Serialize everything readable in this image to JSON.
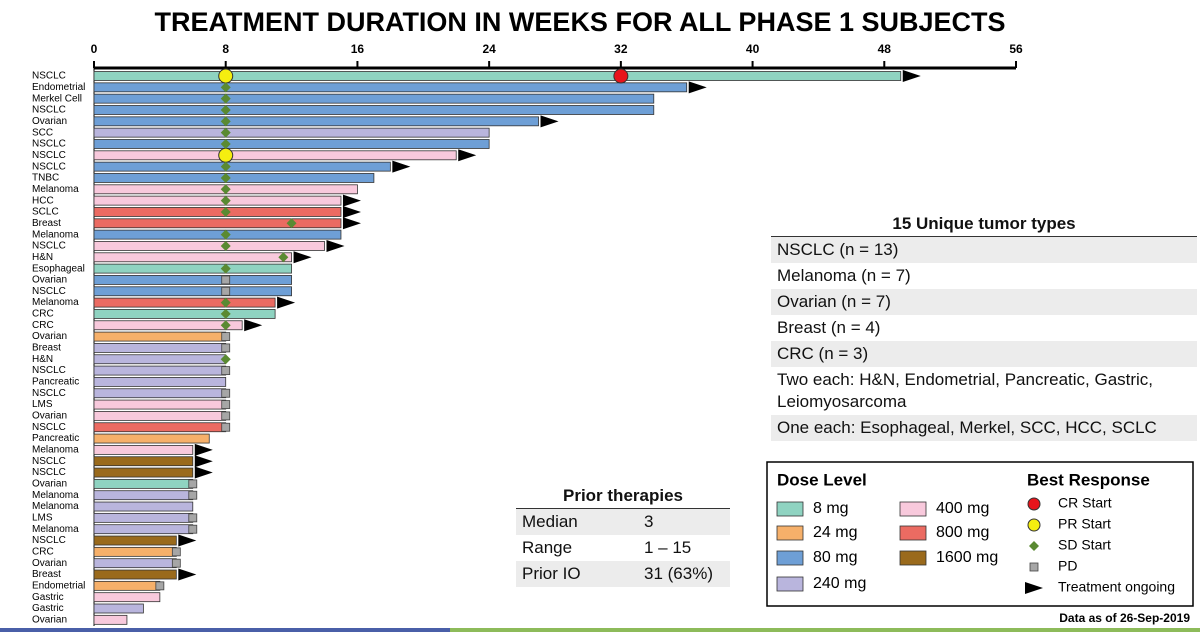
{
  "chart_data": {
    "type": "swimmer",
    "orientation": "horizontal",
    "title": "TREATMENT DURATION IN WEEKS FOR ALL PHASE 1 SUBJECTS",
    "xlim": [
      0,
      56
    ],
    "xticks": [
      0,
      8,
      16,
      24,
      32,
      40,
      48,
      56
    ],
    "categories": [
      "NSCLC",
      "Endometrial",
      "Merkel Cell",
      "NSCLC",
      "Ovarian",
      "SCC",
      "NSCLC",
      "NSCLC",
      "NSCLC",
      "TNBC",
      "Melanoma",
      "HCC",
      "SCLC",
      "Breast",
      "Melanoma",
      "NSCLC",
      "H&N",
      "Esophageal",
      "Ovarian",
      "NSCLC",
      "Melanoma",
      "CRC",
      "CRC",
      "Ovarian",
      "Breast",
      "H&N",
      "NSCLC",
      "Pancreatic",
      "NSCLC",
      "LMS",
      "Ovarian",
      "NSCLC",
      "Pancreatic",
      "Melanoma",
      "NSCLC",
      "NSCLC",
      "Ovarian",
      "Melanoma",
      "Melanoma",
      "LMS",
      "Melanoma",
      "NSCLC",
      "CRC",
      "Ovarian",
      "Breast",
      "Endometrial",
      "Gastric",
      "Gastric",
      "Ovarian"
    ],
    "values": [
      49,
      36,
      34,
      34,
      27,
      24,
      24,
      22,
      18,
      17,
      16,
      15,
      15,
      15,
      15,
      14,
      12,
      12,
      12,
      12,
      11,
      11,
      9,
      8,
      8,
      8,
      8,
      8,
      8,
      8,
      8,
      8,
      7,
      6,
      6,
      6,
      6,
      6,
      6,
      6,
      6,
      5,
      5,
      5,
      5,
      4,
      4,
      3,
      2
    ],
    "dose": [
      "8 mg",
      "80 mg",
      "80 mg",
      "80 mg",
      "80 mg",
      "240 mg",
      "80 mg",
      "400 mg",
      "80 mg",
      "80 mg",
      "400 mg",
      "400 mg",
      "800 mg",
      "800 mg",
      "80 mg",
      "400 mg",
      "400 mg",
      "8 mg",
      "80 mg",
      "80 mg",
      "800 mg",
      "8 mg",
      "400 mg",
      "24 mg",
      "240 mg",
      "240 mg",
      "240 mg",
      "240 mg",
      "240 mg",
      "400 mg",
      "400 mg",
      "800 mg",
      "24 mg",
      "400 mg",
      "1600 mg",
      "1600 mg",
      "8 mg",
      "240 mg",
      "240 mg",
      "240 mg",
      "240 mg",
      "1600 mg",
      "24 mg",
      "240 mg",
      "1600 mg",
      "24 mg",
      "400 mg",
      "240 mg",
      "400 mg"
    ],
    "dose_legend_title": "Dose Level",
    "doses": [
      {
        "name": "8 mg",
        "color": "#8fd3c1"
      },
      {
        "name": "24 mg",
        "color": "#f6b06a"
      },
      {
        "name": "80 mg",
        "color": "#6e9fd6"
      },
      {
        "name": "240 mg",
        "color": "#b9b5dd"
      },
      {
        "name": "400 mg",
        "color": "#f8c9dc"
      },
      {
        "name": "800 mg",
        "color": "#eb6b62"
      },
      {
        "name": "1600 mg",
        "color": "#9a6a1c"
      }
    ],
    "response_legend_title": "Best Response",
    "responses": [
      {
        "name": "CR Start",
        "color": "#e8141b",
        "marker": "circle",
        "values": [
          32,
          null,
          null,
          null,
          null,
          null,
          null,
          null,
          null,
          null,
          null,
          null,
          null,
          null,
          null,
          null,
          null,
          null,
          null,
          null,
          null,
          null,
          null,
          null,
          null,
          null,
          null,
          null,
          null,
          null,
          null,
          null,
          null,
          null,
          null,
          null,
          null,
          null,
          null,
          null,
          null,
          null,
          null,
          null,
          null,
          null,
          null,
          null,
          null
        ]
      },
      {
        "name": "PR Start",
        "color": "#f5ee10",
        "marker": "circle",
        "values": [
          8,
          null,
          null,
          null,
          null,
          null,
          null,
          8,
          null,
          null,
          null,
          null,
          null,
          null,
          null,
          null,
          null,
          null,
          null,
          null,
          null,
          null,
          null,
          null,
          null,
          null,
          null,
          null,
          null,
          null,
          null,
          null,
          null,
          null,
          null,
          null,
          null,
          null,
          null,
          null,
          null,
          null,
          null,
          null,
          null,
          null,
          null,
          null,
          null
        ]
      },
      {
        "name": "SD Start",
        "color": "#5a8a32",
        "marker": "diamond",
        "values": [
          null,
          8,
          8,
          8,
          8,
          8,
          8,
          null,
          8,
          8,
          8,
          8,
          8,
          12,
          8,
          8,
          11.5,
          8,
          null,
          null,
          8,
          8,
          8,
          null,
          null,
          8,
          null,
          null,
          null,
          null,
          null,
          null,
          null,
          null,
          null,
          null,
          null,
          null,
          null,
          null,
          null,
          null,
          null,
          null,
          null,
          null,
          null,
          null,
          null
        ]
      },
      {
        "name": "PD",
        "color": "#a6a6a6",
        "marker": "square",
        "values": [
          null,
          null,
          null,
          null,
          null,
          null,
          null,
          null,
          null,
          null,
          null,
          null,
          null,
          null,
          null,
          null,
          null,
          null,
          8,
          8,
          null,
          null,
          null,
          8,
          8,
          null,
          8,
          null,
          8,
          8,
          8,
          8,
          null,
          null,
          null,
          null,
          6,
          6,
          null,
          6,
          6,
          null,
          5,
          5,
          null,
          4,
          null,
          null,
          null
        ]
      },
      {
        "name": "Treatment ongoing",
        "color": "#000000",
        "marker": "arrow",
        "values": [
          true,
          true,
          false,
          false,
          true,
          false,
          false,
          true,
          true,
          false,
          false,
          true,
          true,
          true,
          false,
          true,
          true,
          false,
          false,
          false,
          true,
          false,
          true,
          false,
          false,
          false,
          false,
          false,
          false,
          false,
          false,
          false,
          false,
          true,
          true,
          true,
          false,
          false,
          false,
          false,
          false,
          true,
          false,
          false,
          true,
          false,
          false,
          false,
          false
        ]
      }
    ]
  },
  "tumor_types": {
    "title": "15 Unique tumor types",
    "rows": [
      "NSCLC (n = 13)",
      "Melanoma (n = 7)",
      "Ovarian (n = 7)",
      "Breast (n = 4)",
      "CRC (n = 3)",
      "Two each: H&N, Endometrial, Pancreatic, Gastric, Leiomyosarcoma",
      "One each: Esophageal, Merkel, SCC, HCC, SCLC"
    ]
  },
  "prior_therapies": {
    "title": "Prior therapies",
    "rows": [
      [
        "Median",
        "3"
      ],
      [
        "Range",
        "1 – 15"
      ],
      [
        "Prior IO",
        "31 (63%)"
      ]
    ]
  },
  "footnote": "Data as of 26-Sep-2019"
}
